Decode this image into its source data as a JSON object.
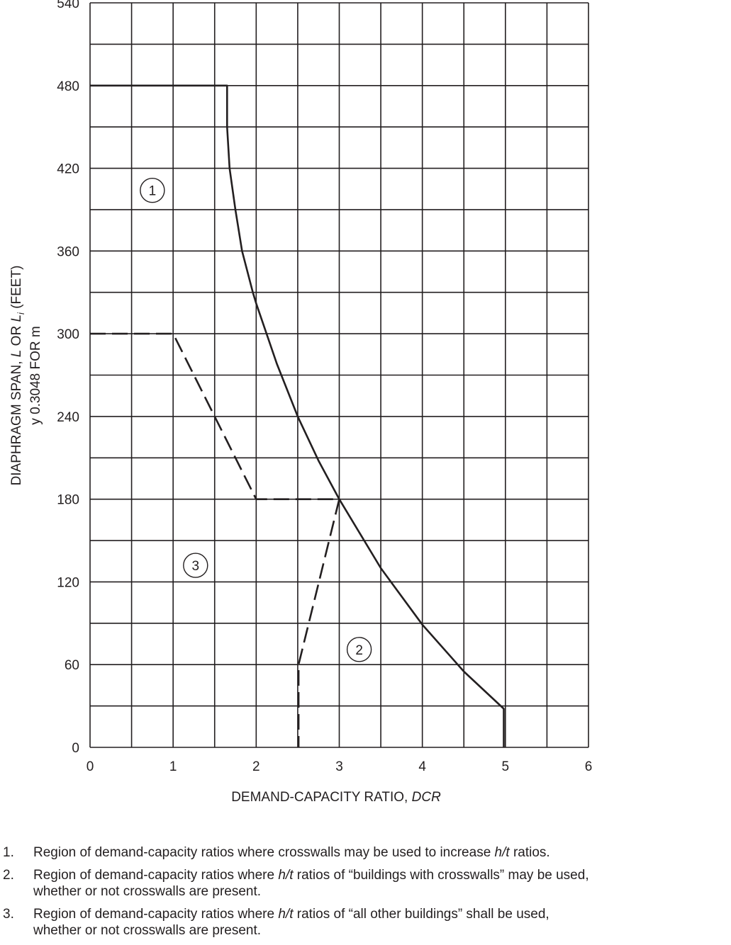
{
  "chart_data": {
    "type": "line",
    "xlabel": {
      "pre": "DEMAND-CAPACITY RATIO, ",
      "em": "DCR"
    },
    "ylabel": {
      "line1_pre": "DIAPHRAGM SPAN, ",
      "line1_em1": "L",
      "line1_mid": " OR ",
      "line1_em2": "L",
      "line1_sub": "i",
      "line1_post": " (FEET)",
      "line2": "y 0.3048 FOR m"
    },
    "xlim": [
      0,
      6
    ],
    "ylim": [
      0,
      540
    ],
    "x_ticks": [
      "0",
      "1",
      "2",
      "3",
      "4",
      "5",
      "6"
    ],
    "y_ticks": [
      "0",
      "60",
      "120",
      "180",
      "240",
      "300",
      "360",
      "420",
      "480",
      "540"
    ],
    "grid": true,
    "grid_x_step": 0.5,
    "grid_y_step": 30,
    "series": [
      {
        "style": "solid",
        "points": [
          [
            0,
            480
          ],
          [
            1.65,
            480
          ],
          [
            1.65,
            450
          ],
          [
            1.68,
            420
          ],
          [
            1.75,
            390
          ],
          [
            1.83,
            360
          ],
          [
            1.96,
            330
          ],
          [
            2.0,
            322
          ],
          [
            2.25,
            278
          ],
          [
            2.5,
            240
          ],
          [
            2.75,
            208
          ],
          [
            3.0,
            180
          ],
          [
            3.5,
            130
          ],
          [
            4.0,
            89
          ],
          [
            4.5,
            55
          ],
          [
            4.98,
            28
          ],
          [
            4.98,
            0
          ]
        ]
      },
      {
        "style": "dashed",
        "points": [
          [
            0,
            300
          ],
          [
            1,
            300
          ],
          [
            2,
            180
          ],
          [
            3,
            180
          ],
          [
            2.51,
            60
          ],
          [
            2.51,
            0
          ]
        ]
      }
    ],
    "region_labels": [
      {
        "label": "1",
        "x": 0.75,
        "y": 404
      },
      {
        "label": "3",
        "x": 1.27,
        "y": 132
      },
      {
        "label": "2",
        "x": 3.24,
        "y": 71
      }
    ]
  },
  "notes": [
    {
      "num": "1.",
      "pre": "Region of demand-capacity ratios where crosswalls may be used to increase ",
      "em": "h/t",
      "post": " ratios.",
      "line2": ""
    },
    {
      "num": "2.",
      "pre": "Region of demand-capacity ratios where ",
      "em": "h/t",
      "post": " ratios of “buildings with crosswalls” may be used,",
      "line2": "whether or not crosswalls are present."
    },
    {
      "num": "3.",
      "pre": "Region of demand-capacity ratios where ",
      "em": "h/t",
      "post": " ratios of “all other buildings” shall be used,",
      "line2": "whether or not crosswalls are present."
    }
  ]
}
